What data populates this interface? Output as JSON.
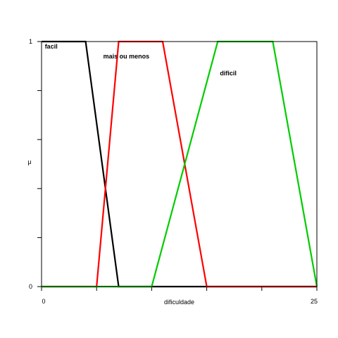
{
  "chart_data": {
    "type": "line",
    "title": "",
    "xlabel": "dificuldade",
    "ylabel": "μ",
    "xlim": [
      0,
      25
    ],
    "ylim": [
      0,
      1
    ],
    "x_tick_values": [
      0,
      5,
      10,
      15,
      20,
      25
    ],
    "x_tick_labels": [
      "0",
      "",
      "",
      "",
      "",
      "25"
    ],
    "y_tick_values": [
      0,
      0.2,
      0.4,
      0.6,
      0.8,
      1
    ],
    "y_tick_labels": [
      "0",
      "",
      "",
      "",
      "",
      "1"
    ],
    "grid": false,
    "legend": "none",
    "series": [
      {
        "name": "facil",
        "color": "#000000",
        "x": [
          0,
          4,
          7,
          25
        ],
        "y": [
          1,
          1,
          0,
          0
        ],
        "label_at": [
          0.3,
          0.98
        ]
      },
      {
        "name": "mais ou menos",
        "color": "#ff0000",
        "x": [
          0,
          5,
          7,
          11,
          15,
          25
        ],
        "y": [
          0,
          0,
          1,
          1,
          0,
          0
        ],
        "label_at": [
          5.6,
          0.94
        ]
      },
      {
        "name": "dificil",
        "color": "#00cc00",
        "x": [
          0,
          10,
          16,
          21,
          25
        ],
        "y": [
          0,
          0,
          1,
          1,
          0
        ],
        "label_at": [
          16.2,
          0.87
        ]
      }
    ]
  }
}
